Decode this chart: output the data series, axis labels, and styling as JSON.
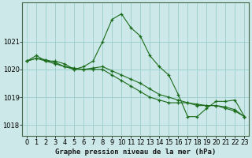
{
  "title": "Graphe pression niveau de la mer (hPa)",
  "background_color": "#cce8e8",
  "grid_color": "#99cccc",
  "line_color": "#1a6b1a",
  "marker_color": "#1a6b1a",
  "ylim": [
    1017.6,
    1022.4
  ],
  "xlim": [
    -0.5,
    23.5
  ],
  "yticks": [
    1018,
    1019,
    1020,
    1021
  ],
  "xtick_labels": [
    "0",
    "1",
    "2",
    "3",
    "4",
    "5",
    "6",
    "7",
    "8",
    "9",
    "10",
    "11",
    "12",
    "13",
    "14",
    "15",
    "16",
    "17",
    "18",
    "19",
    "20",
    "21",
    "22",
    "23"
  ],
  "xticks": [
    0,
    1,
    2,
    3,
    4,
    5,
    6,
    7,
    8,
    9,
    10,
    11,
    12,
    13,
    14,
    15,
    16,
    17,
    18,
    19,
    20,
    21,
    22,
    23
  ],
  "series": [
    [
      1020.3,
      1020.5,
      1020.3,
      1020.3,
      1020.2,
      1020.0,
      1020.1,
      1020.3,
      1021.0,
      1021.8,
      1022.0,
      1021.5,
      1021.2,
      1020.5,
      1020.1,
      1019.8,
      1019.1,
      1018.3,
      1018.3,
      1018.6,
      1018.85,
      1018.85,
      1018.9,
      1018.3
    ],
    [
      1020.3,
      1020.4,
      1020.3,
      1020.2,
      1020.1,
      1020.0,
      1020.0,
      1020.0,
      1020.0,
      1019.8,
      1019.6,
      1019.4,
      1019.2,
      1019.0,
      1018.9,
      1018.8,
      1018.8,
      1018.8,
      1018.7,
      1018.7,
      1018.7,
      1018.6,
      1018.5,
      1018.3
    ],
    [
      1020.3,
      1020.4,
      1020.35,
      1020.25,
      1020.1,
      1020.05,
      1020.0,
      1020.05,
      1020.1,
      1019.95,
      1019.8,
      1019.65,
      1019.5,
      1019.3,
      1019.1,
      1019.0,
      1018.9,
      1018.8,
      1018.75,
      1018.7,
      1018.7,
      1018.65,
      1018.55,
      1018.3
    ]
  ],
  "title_fontsize": 6.5,
  "tick_fontsize": 6,
  "figsize": [
    3.2,
    2.0
  ],
  "dpi": 100
}
